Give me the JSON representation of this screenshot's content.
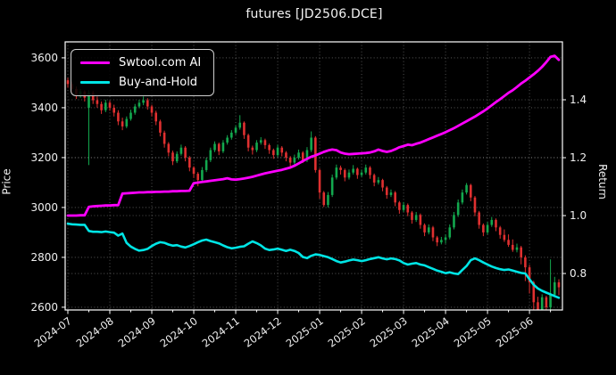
{
  "window_title": "futures [JD2506.DCE]",
  "chart_data": {
    "type": "candlestick+line",
    "title": "futures [JD2506.DCE]",
    "background": "#000000",
    "grid": true,
    "legend_position": "upper left",
    "x_axis": {
      "tick_labels": [
        "2024-07",
        "2024-08",
        "2024-09",
        "2024-10",
        "2024-11",
        "2024-12",
        "2025-01",
        "2025-02",
        "2025-03",
        "2025-04",
        "2025-05",
        "2025-06"
      ],
      "label_rotation_deg": -36
    },
    "left_axis": {
      "label": "Price",
      "ticks": [
        2600,
        2800,
        3000,
        3200,
        3400,
        3600
      ],
      "range": [
        2589,
        3664
      ]
    },
    "right_axis": {
      "label": "Return",
      "ticks": [
        0.8,
        1.0,
        1.2,
        1.4
      ],
      "range": [
        0.674,
        1.6
      ]
    },
    "colors": {
      "up_candle": "#13a84e",
      "down_candle": "#e03030",
      "ai_line": "#ff00ff",
      "bh_line": "#00e5e5",
      "grid": "rgba(255,255,255,0.40)",
      "spine": "#ffffff",
      "text": "#f0f0f0"
    },
    "candles_ohlc": [
      [
        3510,
        3520,
        3480,
        3495
      ],
      [
        3495,
        3505,
        3460,
        3475
      ],
      [
        3475,
        3485,
        3435,
        3450
      ],
      [
        3450,
        3475,
        3440,
        3465
      ],
      [
        3465,
        3470,
        3425,
        3440
      ],
      [
        3400,
        3470,
        3170,
        3460
      ],
      [
        3460,
        3468,
        3415,
        3430
      ],
      [
        3430,
        3445,
        3400,
        3415
      ],
      [
        3415,
        3425,
        3375,
        3390
      ],
      [
        3390,
        3432,
        3382,
        3420
      ],
      [
        3420,
        3428,
        3388,
        3400
      ],
      [
        3400,
        3412,
        3365,
        3380
      ],
      [
        3380,
        3390,
        3330,
        3345
      ],
      [
        3345,
        3360,
        3310,
        3325
      ],
      [
        3325,
        3365,
        3318,
        3355
      ],
      [
        3355,
        3392,
        3348,
        3380
      ],
      [
        3380,
        3415,
        3372,
        3405
      ],
      [
        3405,
        3432,
        3398,
        3420
      ],
      [
        3420,
        3445,
        3410,
        3430
      ],
      [
        3430,
        3438,
        3392,
        3405
      ],
      [
        3405,
        3412,
        3365,
        3380
      ],
      [
        3380,
        3388,
        3330,
        3345
      ],
      [
        3345,
        3352,
        3285,
        3300
      ],
      [
        3300,
        3308,
        3240,
        3255
      ],
      [
        3255,
        3262,
        3205,
        3220
      ],
      [
        3220,
        3228,
        3170,
        3185
      ],
      [
        3185,
        3225,
        3178,
        3215
      ],
      [
        3215,
        3252,
        3208,
        3240
      ],
      [
        3240,
        3246,
        3185,
        3200
      ],
      [
        3200,
        3206,
        3145,
        3160
      ],
      [
        3160,
        3166,
        3118,
        3135
      ],
      [
        3135,
        3142,
        3085,
        3110
      ],
      [
        3110,
        3162,
        3102,
        3150
      ],
      [
        3150,
        3200,
        3142,
        3190
      ],
      [
        3190,
        3240,
        3182,
        3230
      ],
      [
        3230,
        3265,
        3222,
        3255
      ],
      [
        3255,
        3260,
        3210,
        3225
      ],
      [
        3225,
        3270,
        3218,
        3260
      ],
      [
        3260,
        3290,
        3252,
        3280
      ],
      [
        3280,
        3310,
        3272,
        3300
      ],
      [
        3300,
        3330,
        3292,
        3320
      ],
      [
        3320,
        3370,
        3312,
        3340
      ],
      [
        3340,
        3345,
        3275,
        3290
      ],
      [
        3290,
        3296,
        3225,
        3240
      ],
      [
        3240,
        3248,
        3212,
        3230
      ],
      [
        3230,
        3270,
        3222,
        3260
      ],
      [
        3260,
        3282,
        3252,
        3270
      ],
      [
        3270,
        3276,
        3235,
        3250
      ],
      [
        3250,
        3256,
        3215,
        3230
      ],
      [
        3230,
        3236,
        3195,
        3210
      ],
      [
        3210,
        3252,
        3202,
        3240
      ],
      [
        3240,
        3246,
        3205,
        3220
      ],
      [
        3220,
        3226,
        3185,
        3200
      ],
      [
        3200,
        3206,
        3165,
        3180
      ],
      [
        3180,
        3212,
        3172,
        3200
      ],
      [
        3200,
        3232,
        3192,
        3220
      ],
      [
        3220,
        3226,
        3178,
        3190
      ],
      [
        3190,
        3242,
        3182,
        3230
      ],
      [
        3230,
        3305,
        3222,
        3280
      ],
      [
        3280,
        3286,
        3140,
        3150
      ],
      [
        3150,
        3156,
        3035,
        3060
      ],
      [
        3060,
        3066,
        3002,
        3010
      ],
      [
        3010,
        3062,
        3000,
        3050
      ],
      [
        3050,
        3132,
        3042,
        3120
      ],
      [
        3120,
        3172,
        3112,
        3160
      ],
      [
        3160,
        3168,
        3132,
        3150
      ],
      [
        3150,
        3156,
        3105,
        3120
      ],
      [
        3120,
        3152,
        3112,
        3140
      ],
      [
        3140,
        3170,
        3132,
        3155
      ],
      [
        3155,
        3160,
        3115,
        3130
      ],
      [
        3130,
        3152,
        3122,
        3140
      ],
      [
        3140,
        3172,
        3132,
        3160
      ],
      [
        3160,
        3166,
        3115,
        3130
      ],
      [
        3130,
        3136,
        3085,
        3100
      ],
      [
        3100,
        3122,
        3092,
        3110
      ],
      [
        3110,
        3115,
        3065,
        3080
      ],
      [
        3080,
        3086,
        3035,
        3050
      ],
      [
        3050,
        3072,
        3042,
        3060
      ],
      [
        3060,
        3066,
        3005,
        3020
      ],
      [
        3020,
        3026,
        2975,
        2990
      ],
      [
        2990,
        3022,
        2982,
        3010
      ],
      [
        3010,
        3016,
        2965,
        2980
      ],
      [
        2980,
        2986,
        2935,
        2950
      ],
      [
        2950,
        2982,
        2942,
        2970
      ],
      [
        2970,
        2976,
        2915,
        2930
      ],
      [
        2930,
        2936,
        2885,
        2900
      ],
      [
        2900,
        2932,
        2892,
        2920
      ],
      [
        2920,
        2926,
        2865,
        2880
      ],
      [
        2880,
        2886,
        2845,
        2860
      ],
      [
        2860,
        2882,
        2852,
        2870
      ],
      [
        2870,
        2892,
        2855,
        2880
      ],
      [
        2880,
        2932,
        2872,
        2920
      ],
      [
        2920,
        2982,
        2912,
        2970
      ],
      [
        2970,
        3032,
        2962,
        3020
      ],
      [
        3020,
        3072,
        3012,
        3060
      ],
      [
        3060,
        3098,
        3052,
        3090
      ],
      [
        3090,
        3095,
        3025,
        3040
      ],
      [
        3040,
        3046,
        2965,
        2980
      ],
      [
        2980,
        2986,
        2915,
        2930
      ],
      [
        2930,
        2936,
        2885,
        2900
      ],
      [
        2900,
        2942,
        2892,
        2930
      ],
      [
        2930,
        2962,
        2922,
        2950
      ],
      [
        2950,
        2956,
        2905,
        2920
      ],
      [
        2920,
        2926,
        2875,
        2890
      ],
      [
        2890,
        2912,
        2862,
        2870
      ],
      [
        2870,
        2892,
        2842,
        2850
      ],
      [
        2850,
        2872,
        2822,
        2830
      ],
      [
        2830,
        2855,
        2820,
        2840
      ],
      [
        2840,
        2846,
        2772,
        2800
      ],
      [
        2800,
        2808,
        2705,
        2760
      ],
      [
        2760,
        2770,
        2655,
        2700
      ],
      [
        2700,
        2706,
        2588,
        2620
      ],
      [
        2620,
        2642,
        2558,
        2580
      ],
      [
        2580,
        2652,
        2570,
        2640
      ],
      [
        2640,
        2646,
        2562,
        2600
      ],
      [
        2600,
        2792,
        2590,
        2650
      ],
      [
        2650,
        2722,
        2642,
        2700
      ],
      [
        2700,
        2712,
        2648,
        2680
      ]
    ],
    "series": [
      {
        "name": "Swtool.com AI",
        "axis": "right",
        "color": "#ff00ff",
        "values": [
          1.0,
          1.0,
          1.0,
          1.001,
          1.001,
          1.03,
          1.032,
          1.033,
          1.034,
          1.035,
          1.035,
          1.036,
          1.036,
          1.076,
          1.077,
          1.078,
          1.079,
          1.08,
          1.08,
          1.081,
          1.081,
          1.082,
          1.082,
          1.083,
          1.083,
          1.084,
          1.084,
          1.085,
          1.085,
          1.086,
          1.112,
          1.114,
          1.116,
          1.118,
          1.12,
          1.122,
          1.124,
          1.126,
          1.129,
          1.125,
          1.124,
          1.126,
          1.128,
          1.131,
          1.134,
          1.138,
          1.142,
          1.146,
          1.149,
          1.152,
          1.155,
          1.158,
          1.162,
          1.166,
          1.172,
          1.18,
          1.188,
          1.196,
          1.203,
          1.208,
          1.214,
          1.22,
          1.225,
          1.228,
          1.226,
          1.218,
          1.214,
          1.212,
          1.213,
          1.214,
          1.215,
          1.216,
          1.218,
          1.222,
          1.228,
          1.223,
          1.22,
          1.223,
          1.229,
          1.236,
          1.24,
          1.245,
          1.243,
          1.248,
          1.252,
          1.258,
          1.264,
          1.27,
          1.276,
          1.282,
          1.288,
          1.295,
          1.302,
          1.31,
          1.318,
          1.326,
          1.334,
          1.342,
          1.351,
          1.36,
          1.37,
          1.381,
          1.392,
          1.402,
          1.413,
          1.424,
          1.433,
          1.444,
          1.456,
          1.466,
          1.477,
          1.488,
          1.5,
          1.514,
          1.53,
          1.548,
          1.552,
          1.538
        ]
      },
      {
        "name": "Buy-and-Hold",
        "axis": "right",
        "color": "#00e5e5",
        "values": [
          0.972,
          0.97,
          0.969,
          0.968,
          0.968,
          0.947,
          0.944,
          0.944,
          0.943,
          0.945,
          0.943,
          0.941,
          0.931,
          0.938,
          0.906,
          0.893,
          0.885,
          0.879,
          0.881,
          0.885,
          0.895,
          0.903,
          0.908,
          0.906,
          0.9,
          0.896,
          0.898,
          0.893,
          0.89,
          0.895,
          0.901,
          0.908,
          0.914,
          0.917,
          0.912,
          0.908,
          0.904,
          0.897,
          0.891,
          0.887,
          0.889,
          0.892,
          0.894,
          0.903,
          0.911,
          0.905,
          0.897,
          0.886,
          0.881,
          0.883,
          0.886,
          0.882,
          0.878,
          0.882,
          0.878,
          0.871,
          0.857,
          0.853,
          0.861,
          0.866,
          0.864,
          0.86,
          0.856,
          0.85,
          0.843,
          0.838,
          0.841,
          0.845,
          0.848,
          0.846,
          0.843,
          0.846,
          0.85,
          0.853,
          0.856,
          0.852,
          0.849,
          0.852,
          0.85,
          0.845,
          0.836,
          0.831,
          0.834,
          0.836,
          0.831,
          0.828,
          0.822,
          0.816,
          0.81,
          0.806,
          0.801,
          0.804,
          0.8,
          0.798,
          0.812,
          0.826,
          0.846,
          0.852,
          0.846,
          0.838,
          0.831,
          0.824,
          0.819,
          0.815,
          0.812,
          0.814,
          0.81,
          0.806,
          0.802,
          0.8,
          0.78,
          0.761,
          0.748,
          0.74,
          0.734,
          0.728,
          0.722,
          0.716
        ]
      }
    ]
  }
}
